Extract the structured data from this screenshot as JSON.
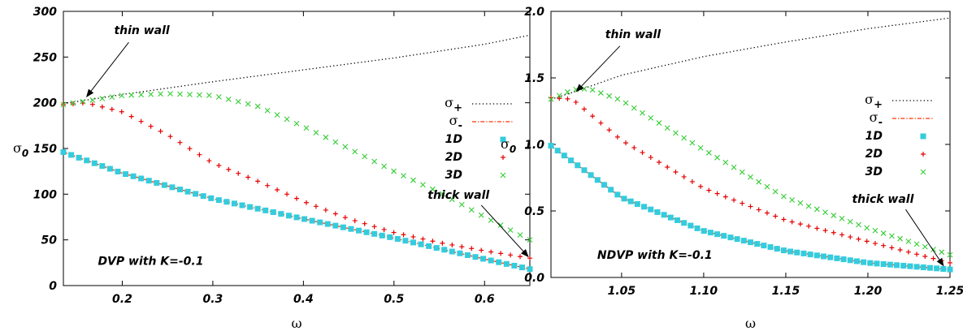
{
  "colors": {
    "sigma_plus": "#000000",
    "sigma_minus": "#ff3300",
    "1D": "#33ccdd",
    "2D": "#e60000",
    "3D": "#33cc33"
  },
  "chart_data": [
    {
      "type": "scatter",
      "xlabel": "ω",
      "ylabel": "σ",
      "ylabel_sub": "0",
      "xlim": [
        0.135,
        0.65
      ],
      "ylim": [
        0,
        300
      ],
      "xticks": [
        0.2,
        0.3,
        0.4,
        0.5,
        0.6
      ],
      "xtick_labels": [
        "0.2",
        "0.3",
        "0.4",
        "0.5",
        "0.6"
      ],
      "yticks": [
        0,
        50,
        100,
        150,
        200,
        250,
        300
      ],
      "ytick_labels": [
        "0",
        "50",
        "100",
        "150",
        "200",
        "250",
        "300"
      ],
      "grid": false,
      "legend_position": "right",
      "annotations": {
        "thin": {
          "text": "thin wall",
          "at": [
            0.158,
            204
          ],
          "label": [
            0.2,
            275
          ]
        },
        "thick": {
          "text": "thick wall",
          "at": [
            0.65,
            29
          ],
          "label": [
            0.6,
            95
          ]
        },
        "caption": {
          "text": "DVP with K=-0.1",
          "at": [
            0.2,
            27
          ]
        }
      },
      "series": [
        {
          "name": "σ",
          "sub": "+",
          "style": "dotted",
          "color_key": "sigma_plus",
          "x": [
            0.135,
            0.2,
            0.3,
            0.4,
            0.5,
            0.6,
            0.65
          ],
          "y": [
            199,
            209,
            223,
            236,
            249,
            264,
            274
          ]
        },
        {
          "name": "σ",
          "sub": "-",
          "style": "dashdot",
          "color_key": "sigma_minus",
          "x": [
            0.135,
            0.2,
            0.3,
            0.4,
            0.5,
            0.6,
            0.65
          ],
          "y": [
            146,
            123,
            95,
            73,
            52,
            29,
            18
          ]
        },
        {
          "name": "1D",
          "style": "square",
          "color_key": "1D",
          "x": [
            0.135,
            0.2,
            0.3,
            0.4,
            0.5,
            0.6,
            0.65
          ],
          "y": [
            146,
            123,
            95,
            73,
            52,
            29,
            18
          ]
        },
        {
          "name": "2D",
          "style": "plus",
          "color_key": "2D",
          "x": [
            0.135,
            0.16,
            0.2,
            0.25,
            0.3,
            0.35,
            0.4,
            0.45,
            0.5,
            0.55,
            0.6,
            0.65
          ],
          "y": [
            198,
            200,
            190,
            165,
            134,
            114,
            92,
            73,
            58,
            47,
            38,
            30
          ]
        },
        {
          "name": "3D",
          "style": "cross",
          "color_key": "3D",
          "x": [
            0.135,
            0.2,
            0.25,
            0.3,
            0.35,
            0.4,
            0.45,
            0.5,
            0.55,
            0.6,
            0.65
          ],
          "y": [
            198,
            208,
            210,
            208,
            196,
            174,
            150,
            125,
            102,
            75,
            50
          ]
        }
      ]
    },
    {
      "type": "scatter",
      "xlabel": "ω",
      "ylabel": "σ",
      "ylabel_sub": "0",
      "xlim": [
        1.007,
        1.25
      ],
      "ylim": [
        0,
        2.0
      ],
      "xticks": [
        1.05,
        1.1,
        1.15,
        1.2,
        1.25
      ],
      "xtick_labels": [
        "1.05",
        "1.10",
        "1.15",
        "1.20",
        "1.25"
      ],
      "yticks": [
        0,
        0.5,
        1.0,
        1.5,
        2.0
      ],
      "ytick_labels": [
        "0.0",
        "0.5",
        "1.0",
        "1.5",
        "2.0"
      ],
      "grid": false,
      "legend_position": "right",
      "annotations": {
        "thin": {
          "text": "thin wall",
          "at": [
            1.021,
            1.38
          ],
          "label": [
            1.045,
            1.8
          ]
        },
        "thick": {
          "text": "thick wall",
          "at": [
            1.247,
            0.07
          ],
          "label": [
            1.225,
            0.56
          ]
        },
        "caption": {
          "text": "NDVP with K=-0.1",
          "at": [
            1.05,
            0.17
          ]
        }
      },
      "series": [
        {
          "name": "σ",
          "sub": "+",
          "style": "dotted",
          "color_key": "sigma_plus",
          "x": [
            1.007,
            1.02,
            1.05,
            1.1,
            1.15,
            1.2,
            1.25
          ],
          "y": [
            1.34,
            1.39,
            1.52,
            1.66,
            1.77,
            1.87,
            1.95
          ]
        },
        {
          "name": "σ",
          "sub": "-",
          "style": "dashdot",
          "color_key": "sigma_minus",
          "x": [
            1.007,
            1.05,
            1.1,
            1.15,
            1.2,
            1.25
          ],
          "y": [
            0.99,
            0.6,
            0.35,
            0.2,
            0.11,
            0.06
          ]
        },
        {
          "name": "1D",
          "style": "square",
          "color_key": "1D",
          "x": [
            1.007,
            1.05,
            1.1,
            1.15,
            1.2,
            1.25
          ],
          "y": [
            0.99,
            0.6,
            0.35,
            0.2,
            0.11,
            0.06
          ]
        },
        {
          "name": "2D",
          "style": "plus",
          "color_key": "2D",
          "x": [
            1.007,
            1.02,
            1.05,
            1.1,
            1.15,
            1.2,
            1.25
          ],
          "y": [
            1.35,
            1.34,
            1.03,
            0.67,
            0.43,
            0.27,
            0.11
          ]
        },
        {
          "name": "3D",
          "style": "cross",
          "color_key": "3D",
          "x": [
            1.007,
            1.02,
            1.03,
            1.05,
            1.1,
            1.15,
            1.2,
            1.25
          ],
          "y": [
            1.34,
            1.41,
            1.42,
            1.33,
            0.96,
            0.6,
            0.37,
            0.17
          ]
        }
      ]
    }
  ]
}
